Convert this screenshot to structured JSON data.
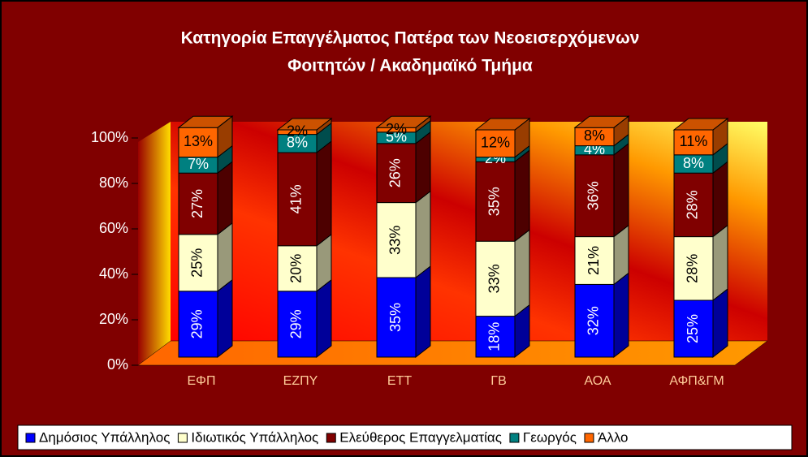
{
  "chart_data": {
    "type": "stacked-bar-3d",
    "title": [
      "Κατηγορία Επαγγέλματος Πατέρα των Νεοεισερχόμενων",
      "Φοιτητών / Ακαδημαϊκό Τμήμα"
    ],
    "categories": [
      "ΕΦΠ",
      "ΕΖΠΥ",
      "ΕΤΤ",
      "ΓΒ",
      "ΑΟΑ",
      "ΑΦΠ&ΓΜ"
    ],
    "series": [
      {
        "name": "Δημόσιος Υπάλληλος",
        "color": "#0000ff",
        "values": [
          29,
          29,
          35,
          18,
          32,
          25
        ],
        "value_labels": [
          "29%",
          "29%",
          "35%",
          "18%",
          "32%",
          "25%"
        ]
      },
      {
        "name": "Ιδιωτικός Υπάλληλος",
        "color": "#ffffcc",
        "values": [
          25,
          20,
          33,
          33,
          21,
          28
        ],
        "value_labels": [
          "25%",
          "20%",
          "33%",
          "33%",
          "21%",
          "28%"
        ]
      },
      {
        "name": "Ελεύθερος Επαγγελματίας",
        "color": "#800000",
        "values": [
          27,
          41,
          26,
          35,
          36,
          28
        ],
        "value_labels": [
          "27%",
          "41%",
          "26%",
          "35%",
          "36%",
          "28%"
        ]
      },
      {
        "name": "Γεωργός",
        "color": "#008080",
        "values": [
          7,
          8,
          5,
          2,
          4,
          8
        ],
        "value_labels": [
          "7%",
          "8%",
          "5%",
          "2%",
          "4%",
          "8%"
        ]
      },
      {
        "name": "Άλλο",
        "color": "#ff6600",
        "values": [
          13,
          2,
          2,
          12,
          8,
          11
        ],
        "value_labels": [
          "13%",
          "2%",
          "2%",
          "12%",
          "8%",
          "11%"
        ]
      }
    ],
    "ylim": [
      0,
      100
    ],
    "yticks": [
      {
        "value": 0,
        "label": "0%"
      },
      {
        "value": 20,
        "label": "20%"
      },
      {
        "value": 40,
        "label": "40%"
      },
      {
        "value": 60,
        "label": "60%"
      },
      {
        "value": 80,
        "label": "80%"
      },
      {
        "value": 100,
        "label": "100%"
      }
    ],
    "grid": false
  }
}
